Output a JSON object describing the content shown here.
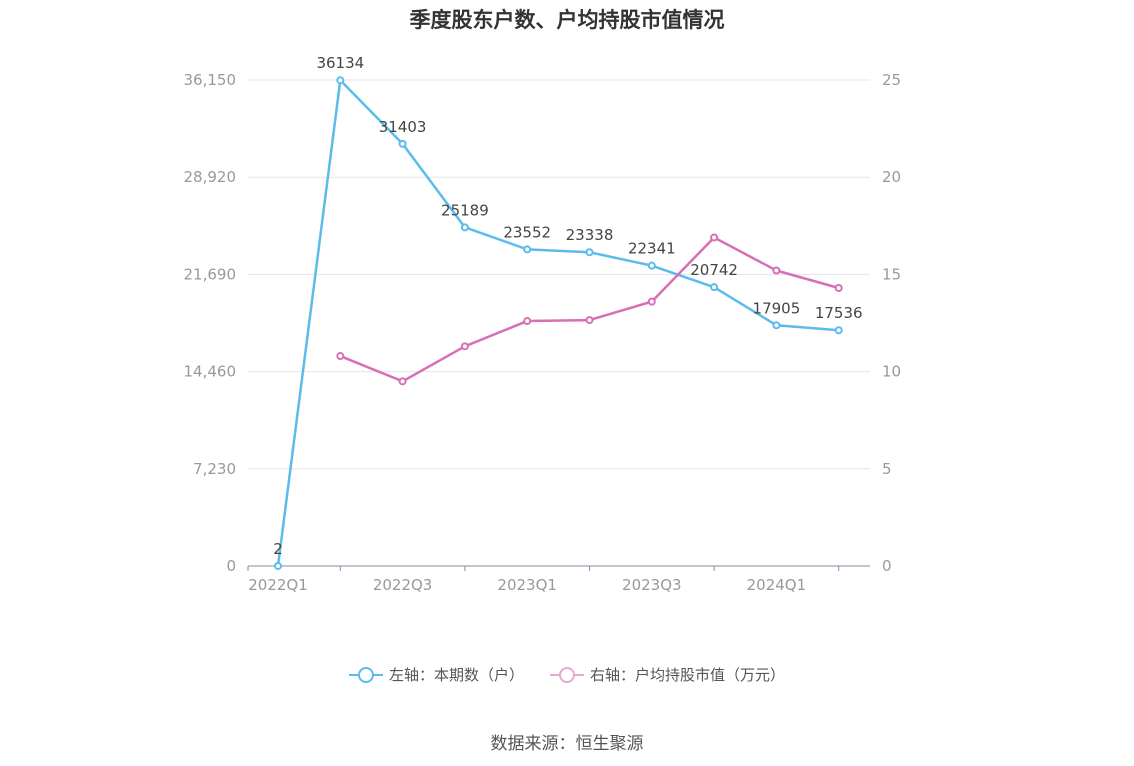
{
  "title": "季度股东户数、户均持股市值情况",
  "source": "数据来源：恒生聚源",
  "legend": {
    "left": "左轴：本期数（户）",
    "right": "右轴：户均持股市值（万元）"
  },
  "colors": {
    "left_series": "#5bbcec",
    "right_series": "#d86fb5",
    "grid": "#e3e6ee",
    "axis": "#8a8aa0"
  },
  "chart_data": {
    "type": "line",
    "x": [
      "2022Q1",
      "2022Q2",
      "2022Q3",
      "2022Q4",
      "2023Q1",
      "2023Q2",
      "2023Q3",
      "2023Q4",
      "2024Q1",
      "2024Q2"
    ],
    "x_tick_labels": [
      "2022Q1",
      "2022Q3",
      "2023Q1",
      "2023Q3",
      "2024Q1"
    ],
    "y_left": {
      "range": [
        0,
        36150
      ],
      "ticks": [
        "0",
        "7,230",
        "14,460",
        "21,690",
        "28,920",
        "36,150"
      ],
      "tick_values": [
        0,
        7230,
        14460,
        21690,
        28920,
        36150
      ]
    },
    "y_right": {
      "range": [
        0,
        25
      ],
      "ticks": [
        "0",
        "5",
        "10",
        "15",
        "20",
        "25"
      ],
      "tick_values": [
        0,
        5,
        10,
        15,
        20,
        25
      ]
    },
    "series": [
      {
        "name": "左轴：本期数（户）",
        "axis": "left",
        "values": [
          2,
          36134,
          31403,
          25189,
          23552,
          23338,
          22341,
          20742,
          17905,
          17536
        ],
        "labels": [
          "2",
          "36134",
          "31403",
          "25189",
          "23552",
          "23338",
          "22341",
          "20742",
          "17905",
          "17536"
        ]
      },
      {
        "name": "右轴：户均持股市值（万元）",
        "axis": "right",
        "values": [
          null,
          10.8,
          9.5,
          11.3,
          12.6,
          12.65,
          13.6,
          16.9,
          15.2,
          14.3
        ]
      }
    ],
    "grid": true,
    "legend_position": "bottom"
  }
}
